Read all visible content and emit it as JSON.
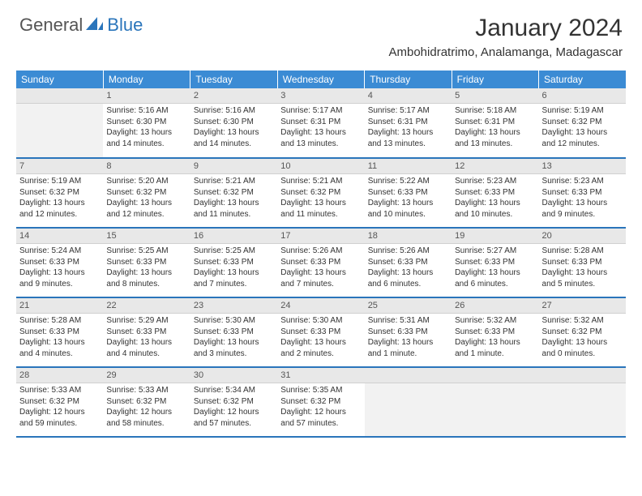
{
  "logo": {
    "text1": "General",
    "text2": "Blue"
  },
  "title": "January 2024",
  "location": "Ambohidratrimo, Analamanga, Madagascar",
  "colors": {
    "header_bg": "#3b8bd4",
    "accent": "#2a75bb",
    "daynum_bg": "#e8e8e8",
    "empty_bg": "#f2f2f2",
    "text": "#333333"
  },
  "weekdays": [
    "Sunday",
    "Monday",
    "Tuesday",
    "Wednesday",
    "Thursday",
    "Friday",
    "Saturday"
  ],
  "weeks": [
    [
      null,
      {
        "n": "1",
        "sr": "Sunrise: 5:16 AM",
        "ss": "Sunset: 6:30 PM",
        "dl": "Daylight: 13 hours and 14 minutes."
      },
      {
        "n": "2",
        "sr": "Sunrise: 5:16 AM",
        "ss": "Sunset: 6:30 PM",
        "dl": "Daylight: 13 hours and 14 minutes."
      },
      {
        "n": "3",
        "sr": "Sunrise: 5:17 AM",
        "ss": "Sunset: 6:31 PM",
        "dl": "Daylight: 13 hours and 13 minutes."
      },
      {
        "n": "4",
        "sr": "Sunrise: 5:17 AM",
        "ss": "Sunset: 6:31 PM",
        "dl": "Daylight: 13 hours and 13 minutes."
      },
      {
        "n": "5",
        "sr": "Sunrise: 5:18 AM",
        "ss": "Sunset: 6:31 PM",
        "dl": "Daylight: 13 hours and 13 minutes."
      },
      {
        "n": "6",
        "sr": "Sunrise: 5:19 AM",
        "ss": "Sunset: 6:32 PM",
        "dl": "Daylight: 13 hours and 12 minutes."
      }
    ],
    [
      {
        "n": "7",
        "sr": "Sunrise: 5:19 AM",
        "ss": "Sunset: 6:32 PM",
        "dl": "Daylight: 13 hours and 12 minutes."
      },
      {
        "n": "8",
        "sr": "Sunrise: 5:20 AM",
        "ss": "Sunset: 6:32 PM",
        "dl": "Daylight: 13 hours and 12 minutes."
      },
      {
        "n": "9",
        "sr": "Sunrise: 5:21 AM",
        "ss": "Sunset: 6:32 PM",
        "dl": "Daylight: 13 hours and 11 minutes."
      },
      {
        "n": "10",
        "sr": "Sunrise: 5:21 AM",
        "ss": "Sunset: 6:32 PM",
        "dl": "Daylight: 13 hours and 11 minutes."
      },
      {
        "n": "11",
        "sr": "Sunrise: 5:22 AM",
        "ss": "Sunset: 6:33 PM",
        "dl": "Daylight: 13 hours and 10 minutes."
      },
      {
        "n": "12",
        "sr": "Sunrise: 5:23 AM",
        "ss": "Sunset: 6:33 PM",
        "dl": "Daylight: 13 hours and 10 minutes."
      },
      {
        "n": "13",
        "sr": "Sunrise: 5:23 AM",
        "ss": "Sunset: 6:33 PM",
        "dl": "Daylight: 13 hours and 9 minutes."
      }
    ],
    [
      {
        "n": "14",
        "sr": "Sunrise: 5:24 AM",
        "ss": "Sunset: 6:33 PM",
        "dl": "Daylight: 13 hours and 9 minutes."
      },
      {
        "n": "15",
        "sr": "Sunrise: 5:25 AM",
        "ss": "Sunset: 6:33 PM",
        "dl": "Daylight: 13 hours and 8 minutes."
      },
      {
        "n": "16",
        "sr": "Sunrise: 5:25 AM",
        "ss": "Sunset: 6:33 PM",
        "dl": "Daylight: 13 hours and 7 minutes."
      },
      {
        "n": "17",
        "sr": "Sunrise: 5:26 AM",
        "ss": "Sunset: 6:33 PM",
        "dl": "Daylight: 13 hours and 7 minutes."
      },
      {
        "n": "18",
        "sr": "Sunrise: 5:26 AM",
        "ss": "Sunset: 6:33 PM",
        "dl": "Daylight: 13 hours and 6 minutes."
      },
      {
        "n": "19",
        "sr": "Sunrise: 5:27 AM",
        "ss": "Sunset: 6:33 PM",
        "dl": "Daylight: 13 hours and 6 minutes."
      },
      {
        "n": "20",
        "sr": "Sunrise: 5:28 AM",
        "ss": "Sunset: 6:33 PM",
        "dl": "Daylight: 13 hours and 5 minutes."
      }
    ],
    [
      {
        "n": "21",
        "sr": "Sunrise: 5:28 AM",
        "ss": "Sunset: 6:33 PM",
        "dl": "Daylight: 13 hours and 4 minutes."
      },
      {
        "n": "22",
        "sr": "Sunrise: 5:29 AM",
        "ss": "Sunset: 6:33 PM",
        "dl": "Daylight: 13 hours and 4 minutes."
      },
      {
        "n": "23",
        "sr": "Sunrise: 5:30 AM",
        "ss": "Sunset: 6:33 PM",
        "dl": "Daylight: 13 hours and 3 minutes."
      },
      {
        "n": "24",
        "sr": "Sunrise: 5:30 AM",
        "ss": "Sunset: 6:33 PM",
        "dl": "Daylight: 13 hours and 2 minutes."
      },
      {
        "n": "25",
        "sr": "Sunrise: 5:31 AM",
        "ss": "Sunset: 6:33 PM",
        "dl": "Daylight: 13 hours and 1 minute."
      },
      {
        "n": "26",
        "sr": "Sunrise: 5:32 AM",
        "ss": "Sunset: 6:33 PM",
        "dl": "Daylight: 13 hours and 1 minute."
      },
      {
        "n": "27",
        "sr": "Sunrise: 5:32 AM",
        "ss": "Sunset: 6:32 PM",
        "dl": "Daylight: 13 hours and 0 minutes."
      }
    ],
    [
      {
        "n": "28",
        "sr": "Sunrise: 5:33 AM",
        "ss": "Sunset: 6:32 PM",
        "dl": "Daylight: 12 hours and 59 minutes."
      },
      {
        "n": "29",
        "sr": "Sunrise: 5:33 AM",
        "ss": "Sunset: 6:32 PM",
        "dl": "Daylight: 12 hours and 58 minutes."
      },
      {
        "n": "30",
        "sr": "Sunrise: 5:34 AM",
        "ss": "Sunset: 6:32 PM",
        "dl": "Daylight: 12 hours and 57 minutes."
      },
      {
        "n": "31",
        "sr": "Sunrise: 5:35 AM",
        "ss": "Sunset: 6:32 PM",
        "dl": "Daylight: 12 hours and 57 minutes."
      },
      null,
      null,
      null
    ]
  ]
}
